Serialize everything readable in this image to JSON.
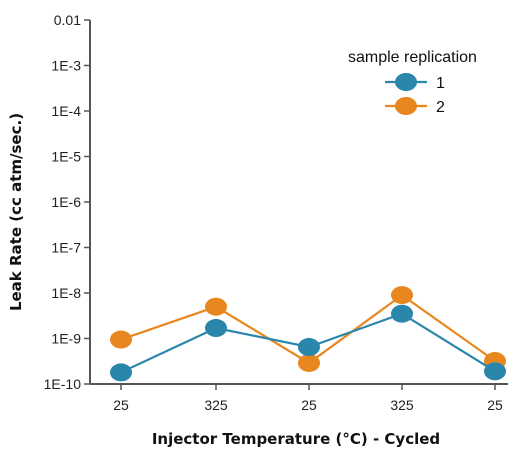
{
  "chart_data": {
    "type": "line",
    "xlabel": "Injector Temperature (°C) - Cycled",
    "ylabel": "Leak Rate (cc atm/sec.)",
    "y_scale": "log",
    "ylim": [
      1e-10,
      0.01
    ],
    "y_tick_values": [
      1e-10,
      1e-09,
      1e-08,
      1e-07,
      1e-06,
      1e-05,
      0.0001,
      0.001,
      0.01
    ],
    "y_tick_labels": [
      "1E-10",
      "1E-9",
      "1E-8",
      "1E-7",
      "1E-6",
      "1E-5",
      "1E-4",
      "1E-3",
      "0.01"
    ],
    "categories": [
      "25",
      "325",
      "25",
      "325",
      "25"
    ],
    "legend_title": "sample replication",
    "legend_position": "top-right",
    "grid": false,
    "series": [
      {
        "name": "1",
        "color": "#2a86ab",
        "values": [
          1.8e-10,
          1.7e-09,
          6.5e-10,
          3.5e-09,
          1.9e-10
        ]
      },
      {
        "name": "2",
        "color": "#e8871e",
        "values": [
          9.5e-10,
          5e-09,
          2.9e-10,
          9e-09,
          3.2e-10
        ]
      }
    ]
  }
}
